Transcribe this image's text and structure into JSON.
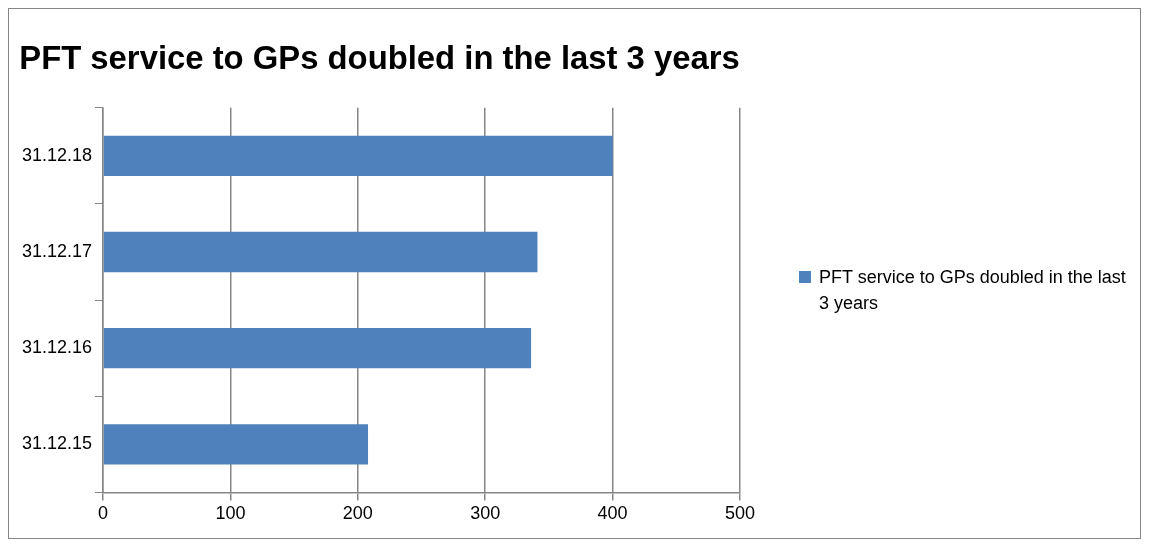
{
  "chart_data": {
    "type": "bar",
    "orientation": "horizontal",
    "title": "PFT service to GPs doubled in the last 3 years",
    "categories": [
      "31.12.18",
      "31.12.17",
      "31.12.16",
      "31.12.15"
    ],
    "series": [
      {
        "name": "PFT service to GPs doubled in the last 3 years",
        "color": "#4f81bd",
        "values": [
          400,
          341,
          336,
          208
        ]
      }
    ],
    "xlim": [
      0,
      500
    ],
    "xticks": [
      0,
      100,
      200,
      300,
      400,
      500
    ],
    "grid": "x",
    "legend": "right"
  }
}
